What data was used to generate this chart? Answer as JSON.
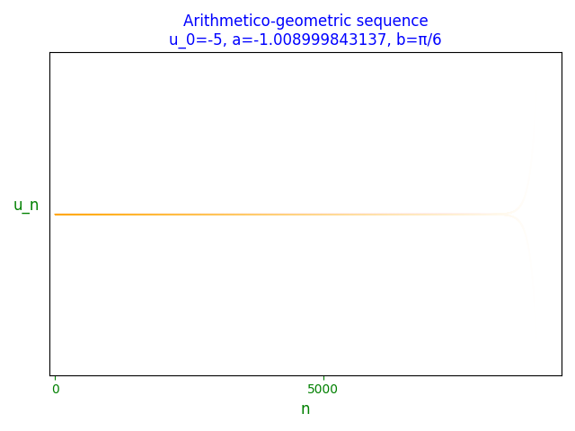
{
  "title_line1": "Arithmetico-geometric sequence",
  "title_line2": "u_0=-5, a=-1.008999843137, b=π/6",
  "title_color": "blue",
  "xlabel": "n",
  "ylabel": "u_n",
  "xlabel_color": "green",
  "ylabel_color": "green",
  "tick_color": "green",
  "u0": -5,
  "a": -1.008999843137,
  "n_points": 9000,
  "point_size": 1,
  "background_color": "white",
  "axes_facecolor": "white",
  "figsize": [
    6.4,
    4.8
  ],
  "dpi": 100
}
